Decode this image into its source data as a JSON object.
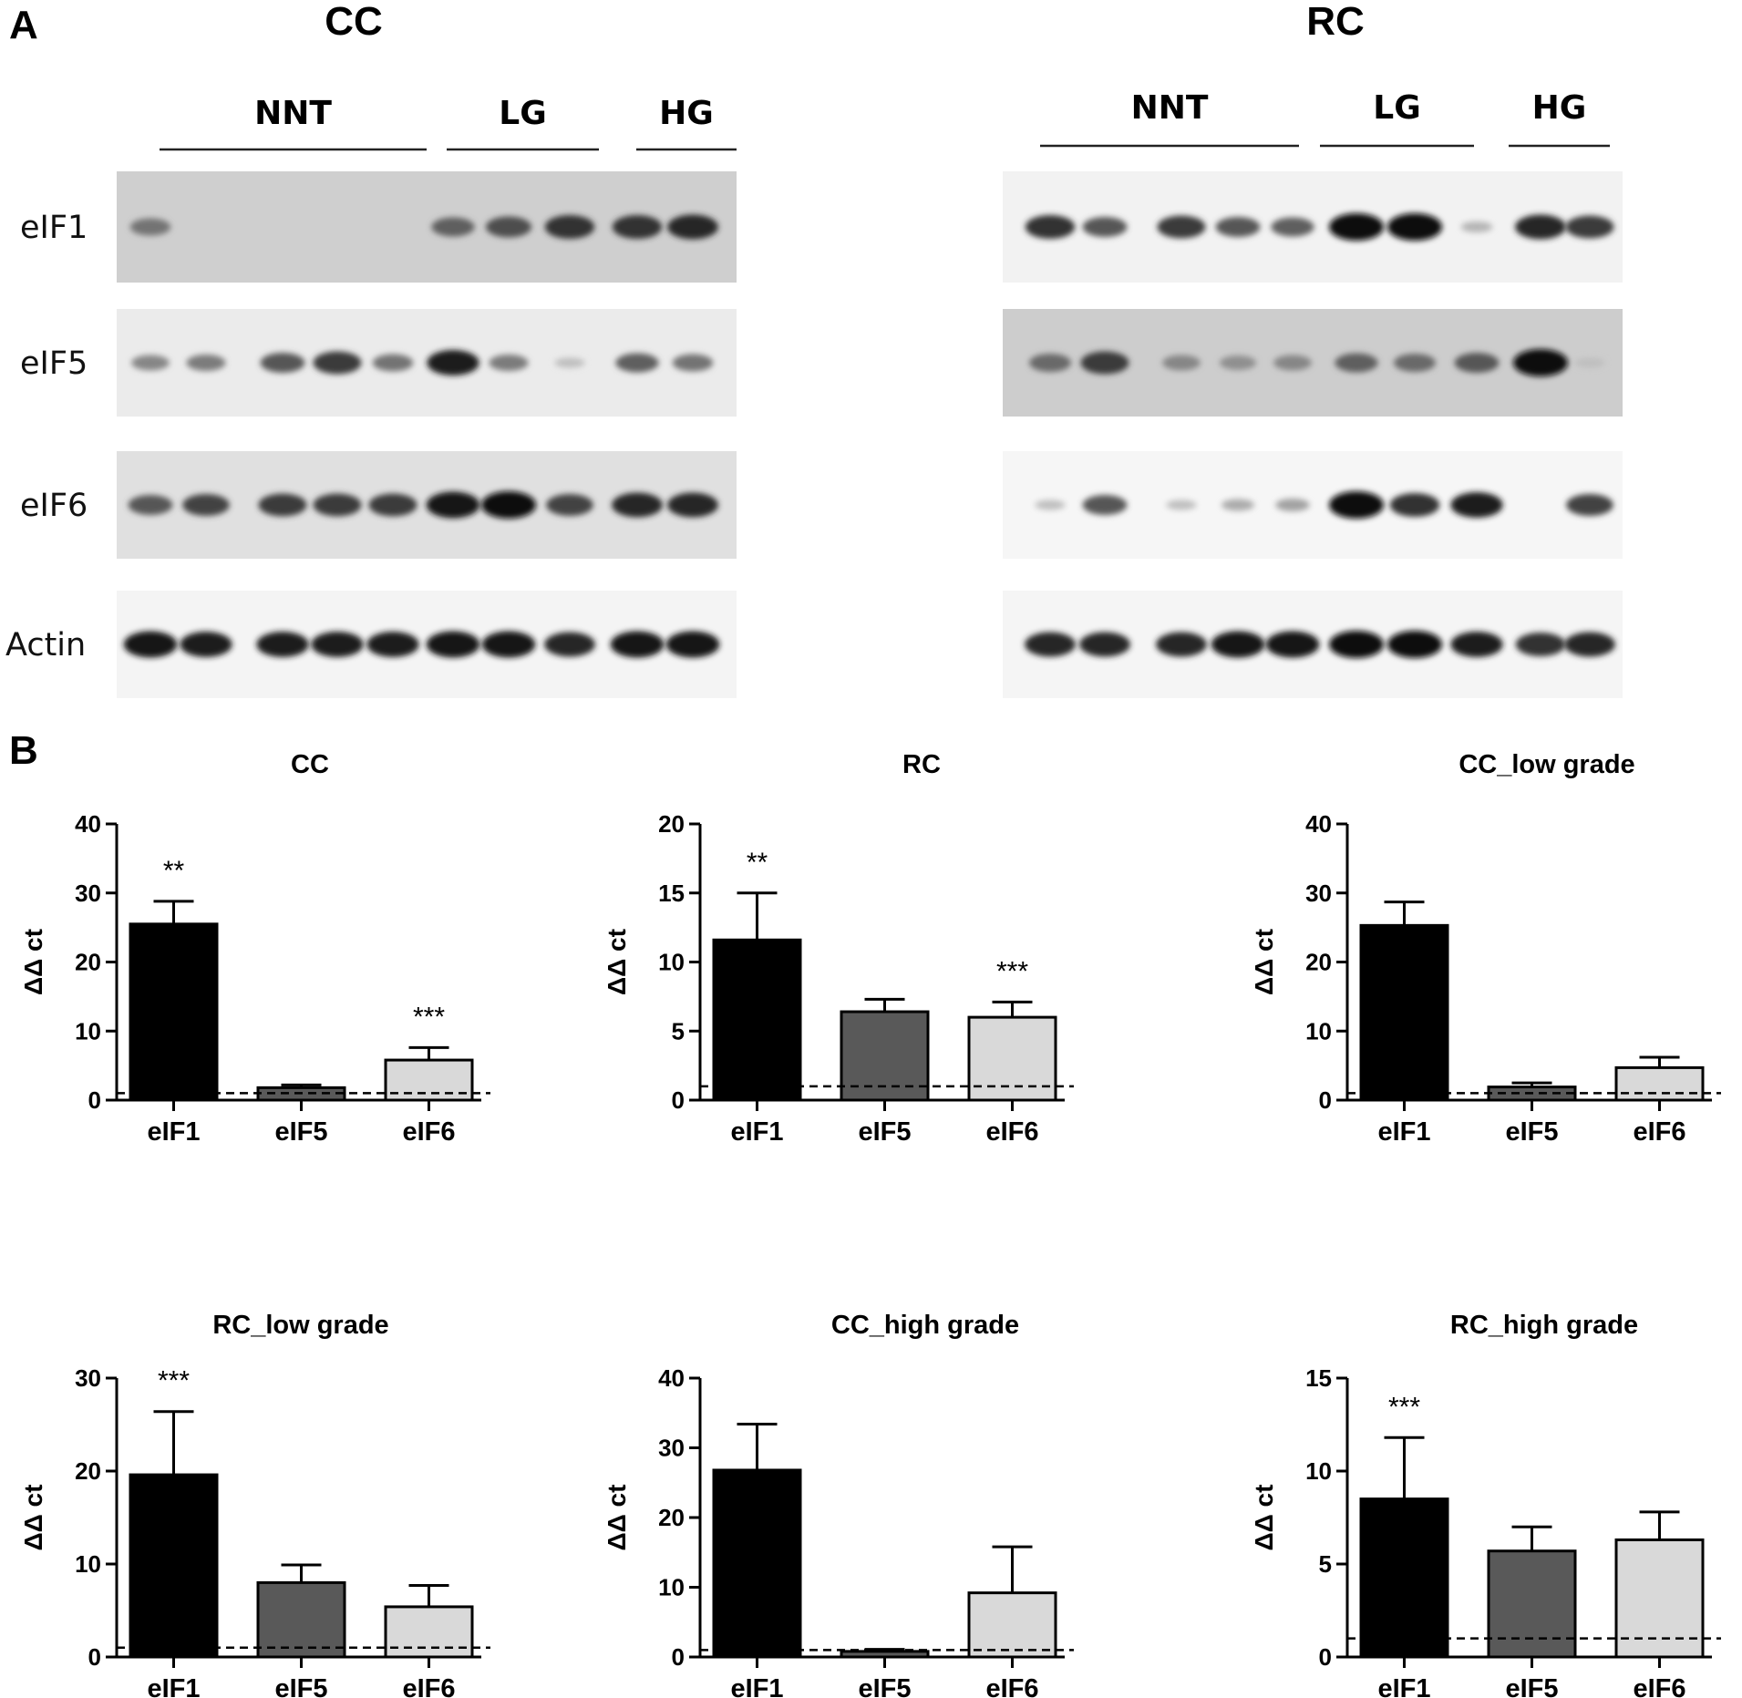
{
  "panel_a": {
    "letter": "A",
    "blots": [
      {
        "id": "cc",
        "title": "CC",
        "groups": [
          {
            "label": "NNT",
            "lanes": 5
          },
          {
            "label": "LG",
            "lanes": 3
          },
          {
            "label": "HG",
            "lanes": 2
          }
        ],
        "rows": [
          {
            "label": "eIF1",
            "band_intensity": [
              0.45,
              0,
              0,
              0,
              0,
              0.55,
              0.65,
              0.8,
              0.8,
              0.85
            ]
          },
          {
            "label": "eIF5",
            "band_intensity": [
              0.35,
              0.4,
              0.6,
              0.75,
              0.45,
              0.9,
              0.4,
              0.05,
              0.55,
              0.45
            ]
          },
          {
            "label": "eIF6",
            "band_intensity": [
              0.6,
              0.7,
              0.75,
              0.75,
              0.75,
              0.95,
              1.0,
              0.7,
              0.85,
              0.85
            ]
          },
          {
            "label": "Actin",
            "band_intensity": [
              0.95,
              0.9,
              0.9,
              0.9,
              0.9,
              0.95,
              0.95,
              0.85,
              0.95,
              0.95
            ]
          }
        ]
      },
      {
        "id": "rc",
        "title": "RC",
        "groups": [
          {
            "label": "NNT",
            "lanes": 5
          },
          {
            "label": "LG",
            "lanes": 3
          },
          {
            "label": "HG",
            "lanes": 2
          }
        ],
        "rows": [
          {
            "label": "eIF1",
            "band_intensity": [
              0.8,
              0.6,
              0.75,
              0.6,
              0.55,
              1.0,
              1.0,
              0.1,
              0.85,
              0.75
            ]
          },
          {
            "label": "eIF5",
            "band_intensity": [
              0.5,
              0.75,
              0.35,
              0.3,
              0.35,
              0.55,
              0.5,
              0.6,
              1.0,
              0.05
            ]
          },
          {
            "label": "eIF6",
            "band_intensity": [
              0.05,
              0.6,
              0.05,
              0.15,
              0.2,
              1.0,
              0.8,
              0.9,
              0.0,
              0.7
            ]
          },
          {
            "label": "Actin",
            "band_intensity": [
              0.85,
              0.85,
              0.85,
              0.95,
              0.95,
              1.0,
              1.0,
              0.9,
              0.8,
              0.85
            ]
          }
        ]
      }
    ]
  },
  "panel_b": {
    "letter": "B",
    "sig_marks": [
      "**",
      "***"
    ]
  },
  "chart_data": [
    {
      "type": "bar",
      "title": "CC",
      "ylabel": "ΔΔ ct",
      "categories": [
        "eIF1",
        "eIF5",
        "eIF6"
      ],
      "values": [
        25.5,
        1.8,
        5.8
      ],
      "errors": [
        3.3,
        0.4,
        1.8
      ],
      "ylim": [
        0,
        40
      ],
      "yticks": [
        0,
        10,
        20,
        30,
        40
      ],
      "reference_line": 1,
      "significance": [
        "**",
        "",
        "***"
      ],
      "colors": [
        "#000000",
        "#595959",
        "#d9d9d9"
      ]
    },
    {
      "type": "bar",
      "title": "RC",
      "ylabel": "ΔΔ ct",
      "categories": [
        "eIF1",
        "eIF5",
        "eIF6"
      ],
      "values": [
        11.6,
        6.4,
        6.0
      ],
      "errors": [
        3.4,
        0.9,
        1.1
      ],
      "ylim": [
        0,
        20
      ],
      "yticks": [
        0,
        5,
        10,
        15,
        20
      ],
      "reference_line": 1,
      "significance": [
        "**",
        "",
        "***"
      ],
      "colors": [
        "#000000",
        "#595959",
        "#d9d9d9"
      ]
    },
    {
      "type": "bar",
      "title": "CC_low grade",
      "ylabel": "ΔΔ ct",
      "categories": [
        "eIF1",
        "eIF5",
        "eIF6"
      ],
      "values": [
        25.3,
        1.9,
        4.7
      ],
      "errors": [
        3.4,
        0.6,
        1.5
      ],
      "ylim": [
        0,
        40
      ],
      "yticks": [
        0,
        10,
        20,
        30,
        40
      ],
      "reference_line": 1,
      "significance": [
        "",
        "",
        ""
      ],
      "colors": [
        "#000000",
        "#595959",
        "#d9d9d9"
      ]
    },
    {
      "type": "bar",
      "title": "RC_low grade",
      "ylabel": "ΔΔ ct",
      "categories": [
        "eIF1",
        "eIF5",
        "eIF6"
      ],
      "values": [
        19.6,
        8.0,
        5.4
      ],
      "errors": [
        6.8,
        1.9,
        2.3
      ],
      "ylim": [
        0,
        30
      ],
      "yticks": [
        0,
        10,
        20,
        30
      ],
      "reference_line": 1,
      "significance": [
        "***",
        "",
        ""
      ],
      "colors": [
        "#000000",
        "#595959",
        "#d9d9d9"
      ]
    },
    {
      "type": "bar",
      "title": "CC_high grade",
      "ylabel": "ΔΔ ct",
      "categories": [
        "eIF1",
        "eIF5",
        "eIF6"
      ],
      "values": [
        26.8,
        0.8,
        9.2
      ],
      "errors": [
        6.6,
        0.3,
        6.6
      ],
      "ylim": [
        0,
        40
      ],
      "yticks": [
        0,
        10,
        20,
        30,
        40
      ],
      "reference_line": 1,
      "significance": [
        "",
        "",
        ""
      ],
      "colors": [
        "#000000",
        "#595959",
        "#d9d9d9"
      ]
    },
    {
      "type": "bar",
      "title": "RC_high grade",
      "ylabel": "ΔΔ ct",
      "categories": [
        "eIF1",
        "eIF5",
        "eIF6"
      ],
      "values": [
        8.5,
        5.7,
        6.3
      ],
      "errors": [
        3.3,
        1.3,
        1.5
      ],
      "ylim": [
        0,
        15
      ],
      "yticks": [
        0,
        5,
        10,
        15
      ],
      "reference_line": 1,
      "significance": [
        "***",
        "",
        ""
      ],
      "colors": [
        "#000000",
        "#595959",
        "#d9d9d9"
      ]
    }
  ]
}
